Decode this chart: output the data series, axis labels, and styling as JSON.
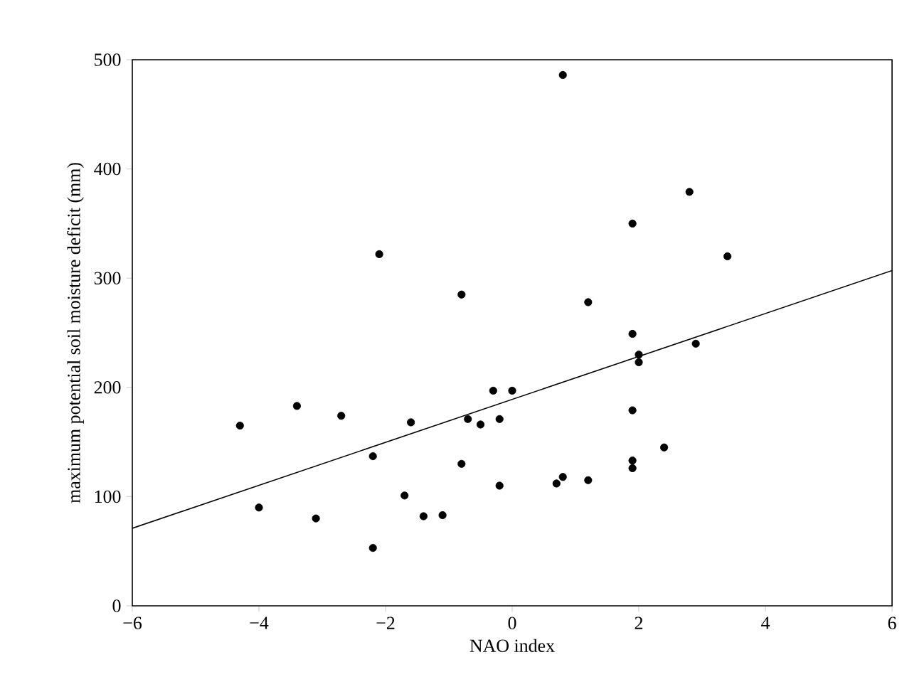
{
  "chart_data": {
    "type": "scatter",
    "xlabel": "NAO index",
    "ylabel": "maximum potential soil moisture deficit (mm)",
    "xlim": [
      -6,
      6
    ],
    "ylim": [
      0,
      500
    ],
    "xticks": [
      {
        "value": -6,
        "label": "−6"
      },
      {
        "value": -4,
        "label": "−4"
      },
      {
        "value": -2,
        "label": "−2"
      },
      0,
      2,
      4,
      6
    ],
    "yticks": [
      0,
      100,
      200,
      300,
      400,
      500
    ],
    "series": [
      {
        "type": "scatter",
        "marker": "circle",
        "color": "#000000",
        "x": [
          -4.3,
          -4.0,
          -3.4,
          -3.1,
          -2.7,
          -2.2,
          -2.2,
          -2.1,
          -1.7,
          -1.6,
          -1.4,
          -1.1,
          -0.8,
          -0.8,
          -0.7,
          -0.5,
          -0.3,
          -0.2,
          -0.2,
          0,
          0.7,
          0.8,
          0.8,
          1.2,
          1.2,
          1.9,
          1.9,
          1.9,
          1.9,
          1.9,
          2.0,
          2.0,
          2.4,
          2.8,
          2.9,
          3.4
        ],
        "values": [
          165,
          90,
          183,
          80,
          174,
          137,
          53,
          322,
          101,
          168,
          82,
          83,
          285,
          130,
          171,
          166,
          197,
          171,
          110,
          197,
          112,
          118,
          486,
          278,
          115,
          350,
          249,
          179,
          133,
          126,
          230,
          223,
          145,
          379,
          240,
          320
        ]
      },
      {
        "type": "line",
        "marker": "none",
        "color": "#000000",
        "x": [
          -6,
          6
        ],
        "values": [
          71,
          307
        ]
      }
    ]
  }
}
